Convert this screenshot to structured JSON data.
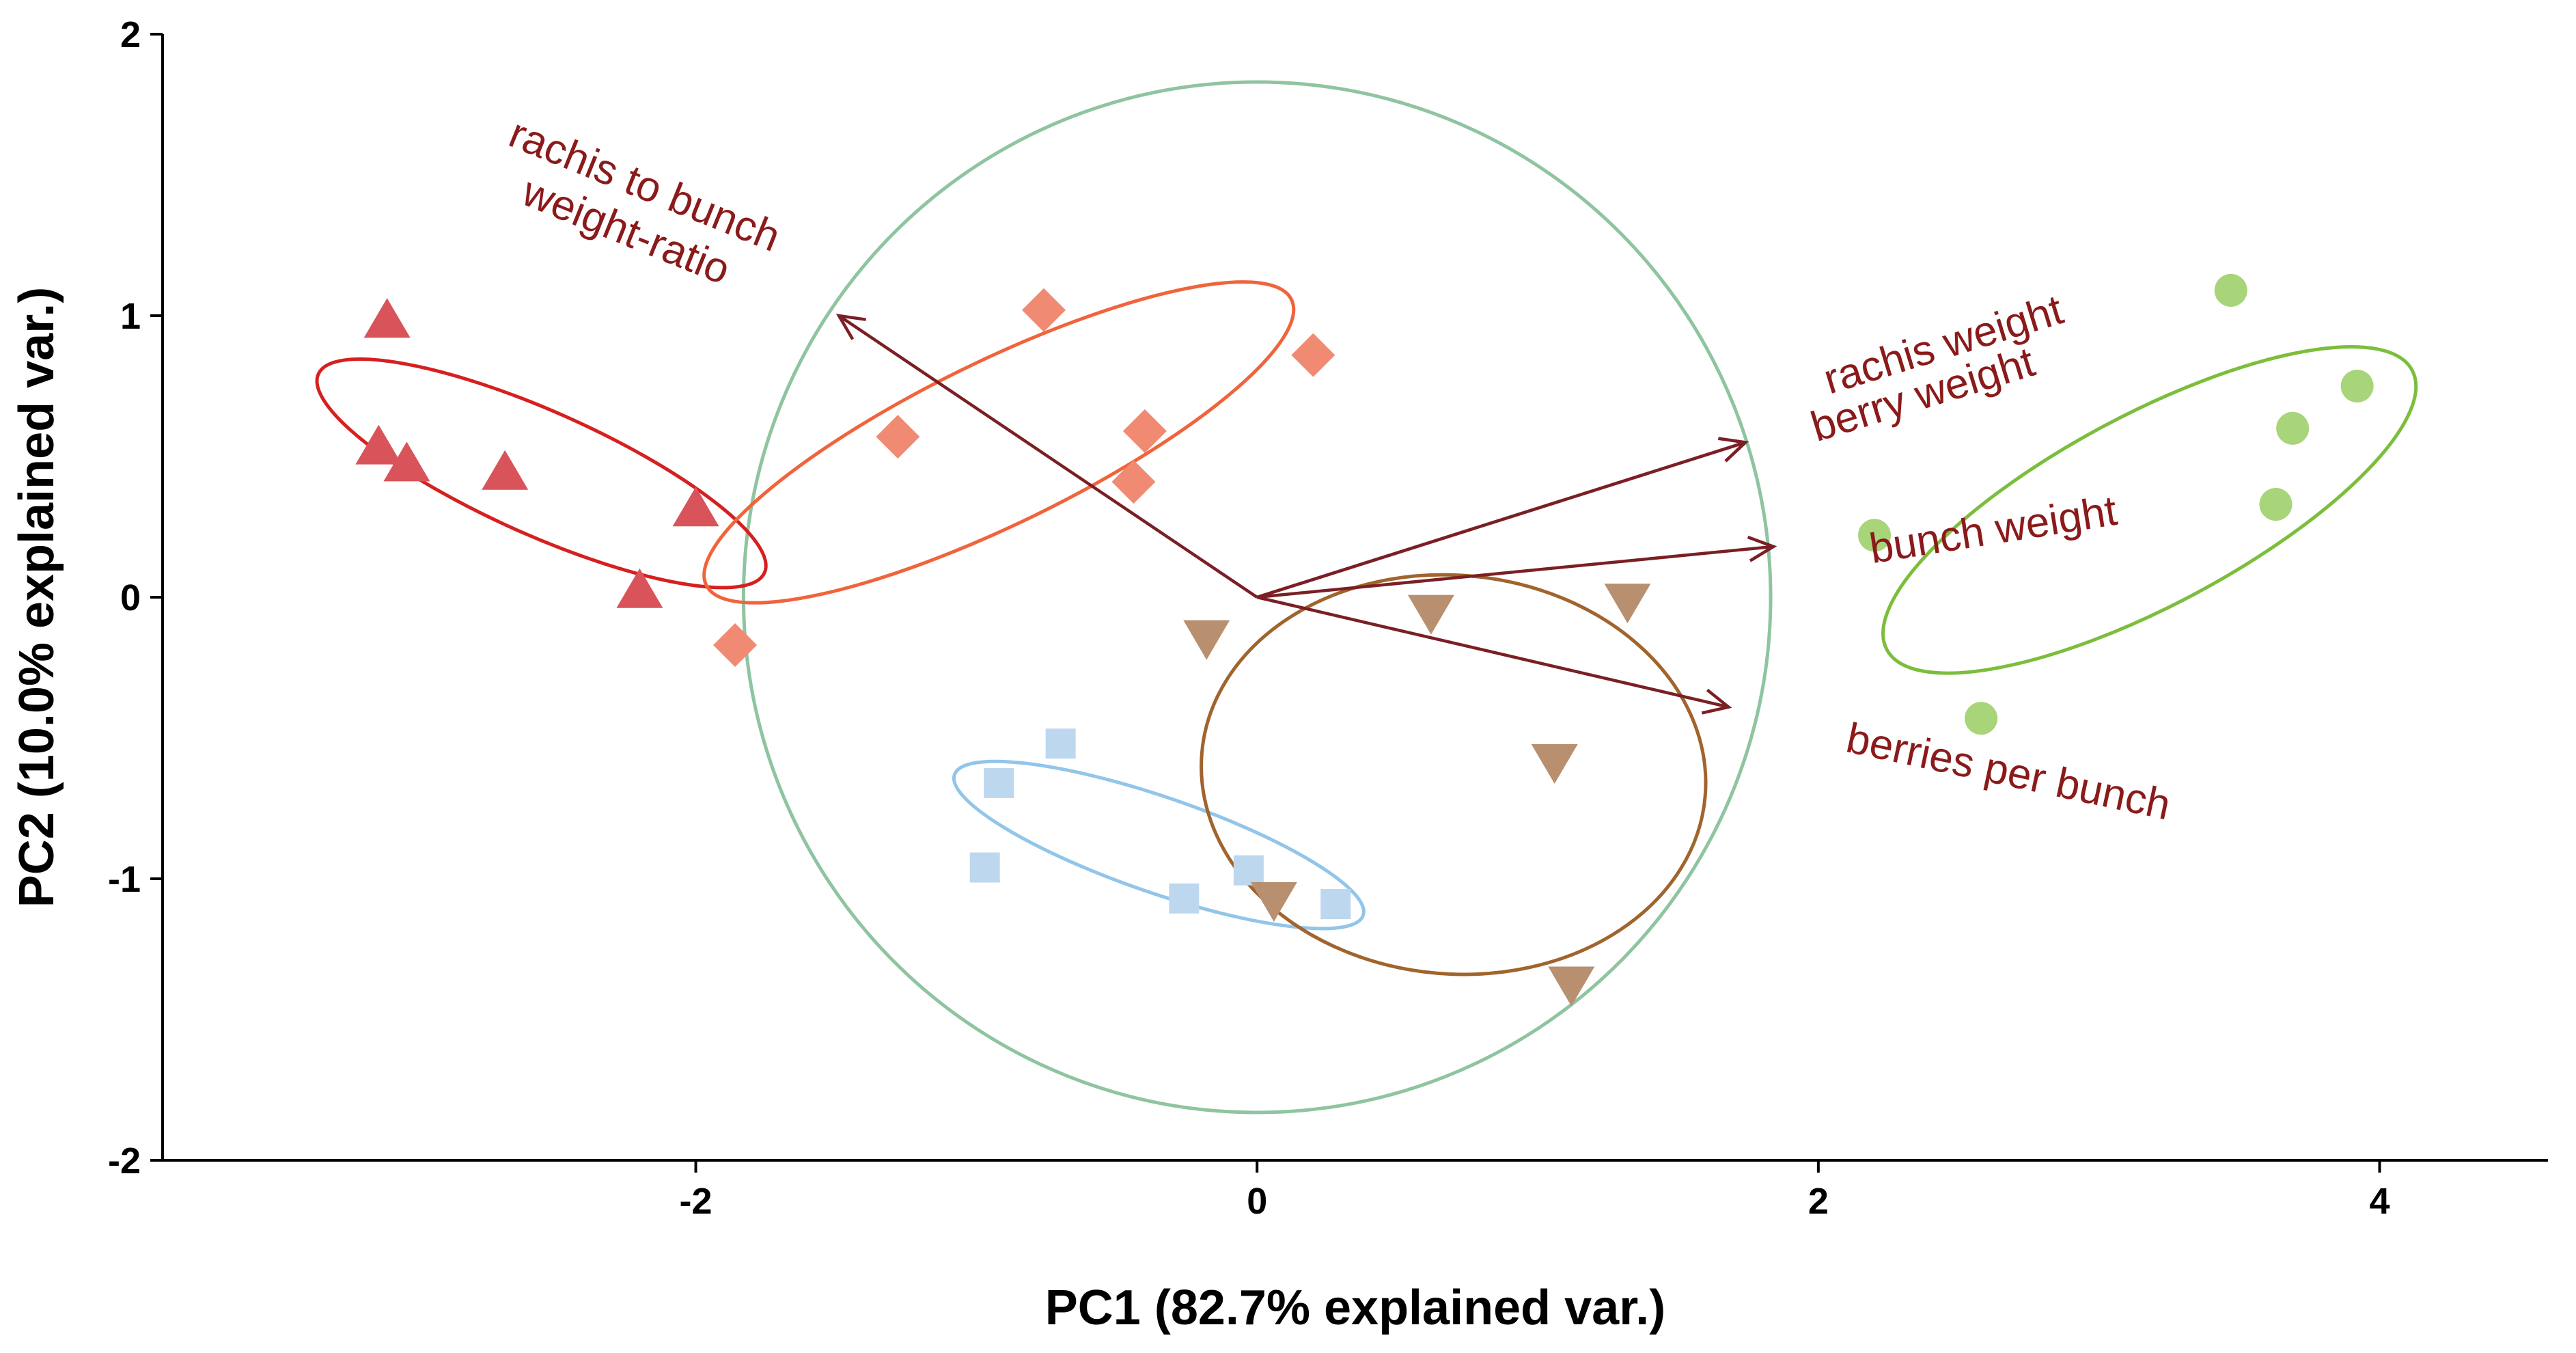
{
  "chart_data": {
    "type": "scatter",
    "subtype": "pca-biplot",
    "title": "",
    "xlabel": "PC1 (82.7% explained var.)",
    "ylabel": "PC2 (10.0% explained var.)",
    "xlim": [
      -3.9,
      4.6
    ],
    "ylim": [
      -2.0,
      2.0
    ],
    "x_ticks": [
      -2,
      0,
      2,
      4
    ],
    "y_ticks": [
      -2,
      -1,
      0,
      1,
      2
    ],
    "x_tick_labels": [
      "-2",
      "0",
      "2",
      "4"
    ],
    "y_tick_labels": [
      "-2",
      "-1",
      "0",
      "1",
      "2"
    ],
    "grid": false,
    "legend": "none",
    "series": [
      {
        "name": "group-triangle-up",
        "shape": "triangle-up",
        "color": "#D9545A",
        "points": [
          [
            -3.1,
            0.98
          ],
          [
            -3.13,
            0.53
          ],
          [
            -3.03,
            0.47
          ],
          [
            -2.68,
            0.44
          ],
          [
            -2.0,
            0.31
          ],
          [
            -2.2,
            0.02
          ]
        ],
        "ellipse": {
          "cx": -2.55,
          "cy": 0.44,
          "rx": 0.87,
          "ry": 0.22,
          "angle_deg": -24,
          "color": "#D62020"
        }
      },
      {
        "name": "group-diamond",
        "shape": "diamond",
        "color": "#F08A72",
        "points": [
          [
            -0.76,
            1.02
          ],
          [
            0.2,
            0.86
          ],
          [
            -1.28,
            0.57
          ],
          [
            -0.4,
            0.59
          ],
          [
            -0.44,
            0.41
          ],
          [
            -1.86,
            -0.17
          ]
        ],
        "ellipse": {
          "cx": -0.92,
          "cy": 0.55,
          "rx": 1.16,
          "ry": 0.29,
          "angle_deg": 26,
          "color": "#F0643C"
        }
      },
      {
        "name": "group-square",
        "shape": "square",
        "color": "#BDD7EE",
        "points": [
          [
            -0.7,
            -0.52
          ],
          [
            -0.92,
            -0.66
          ],
          [
            -0.97,
            -0.96
          ],
          [
            -0.03,
            -0.97
          ],
          [
            -0.26,
            -1.07
          ],
          [
            0.28,
            -1.09
          ]
        ],
        "ellipse": {
          "cx": -0.35,
          "cy": -0.88,
          "rx": 0.77,
          "ry": 0.17,
          "angle_deg": -19,
          "color": "#92C5EA"
        }
      },
      {
        "name": "group-triangle-down",
        "shape": "triangle-down",
        "color": "#B89070",
        "points": [
          [
            -0.18,
            -0.14
          ],
          [
            0.62,
            -0.05
          ],
          [
            1.32,
            -0.01
          ],
          [
            1.06,
            -0.58
          ],
          [
            0.06,
            -1.07
          ],
          [
            1.12,
            -1.37
          ]
        ],
        "ellipse": {
          "cx": 0.7,
          "cy": -0.63,
          "rx": 0.9,
          "ry": 0.71,
          "angle_deg": -5,
          "color": "#A0642D"
        }
      },
      {
        "name": "group-circle",
        "shape": "circle",
        "color": "#A8D47A",
        "points": [
          [
            3.47,
            1.09
          ],
          [
            3.92,
            0.75
          ],
          [
            3.69,
            0.6
          ],
          [
            3.63,
            0.33
          ],
          [
            2.2,
            0.22
          ],
          [
            2.58,
            -0.43
          ]
        ],
        "ellipse": {
          "cx": 3.18,
          "cy": 0.31,
          "rx": 1.06,
          "ry": 0.34,
          "angle_deg": 28,
          "color": "#7CBE3C"
        }
      }
    ],
    "correlation_circle": {
      "cx": 0.0,
      "cy": 0.0,
      "r": 1.83,
      "color": "#8FC4A0"
    },
    "loadings": [
      {
        "name": "rachis to bunch weight-ratio",
        "label_lines": [
          "rachis to bunch",
          "weight-ratio"
        ],
        "x": -1.49,
        "y": 1.0
      },
      {
        "name": "rachis weight",
        "label_lines": [
          "rachis weight"
        ],
        "x": 1.74,
        "y": 0.55
      },
      {
        "name": "berry weight",
        "label_lines": [
          "berry weight"
        ],
        "x": 1.74,
        "y": 0.55
      },
      {
        "name": "bunch weight",
        "label_lines": [
          "bunch weight"
        ],
        "x": 1.84,
        "y": 0.18
      },
      {
        "name": "berries per bunch",
        "label_lines": [
          "berries per bunch"
        ],
        "x": 1.68,
        "y": -0.39
      }
    ],
    "loading_color": "#8B1A1A",
    "arrow_color": "#7A1F24"
  }
}
